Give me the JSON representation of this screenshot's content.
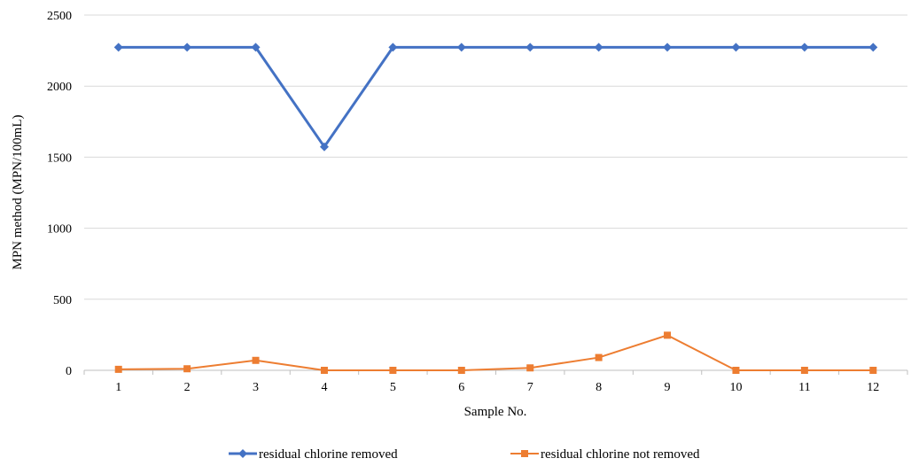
{
  "chart_data": {
    "type": "line",
    "title": "",
    "xlabel": "Sample No.",
    "ylabel": "MPN method (MPN/100mL)",
    "categories": [
      "1",
      "2",
      "3",
      "4",
      "5",
      "6",
      "7",
      "8",
      "9",
      "10",
      "11",
      "12"
    ],
    "yticks": [
      "0",
      "500",
      "1000",
      "1500",
      "2000",
      "2500"
    ],
    "ylim": [
      0,
      2500
    ],
    "grid": true,
    "legend_position": "bottom",
    "series": [
      {
        "name": "residual chlorine removed",
        "color": "#4472c4",
        "marker": "diamond",
        "values": [
          2273,
          2273,
          2273,
          1573,
          2273,
          2273,
          2273,
          2273,
          2273,
          2273,
          2273,
          2273
        ]
      },
      {
        "name": "residual chlorine not removed",
        "color": "#ed7d31",
        "marker": "square",
        "values": [
          7,
          11,
          70,
          0,
          0,
          0,
          17,
          90,
          247,
          0,
          0,
          0
        ]
      }
    ]
  }
}
